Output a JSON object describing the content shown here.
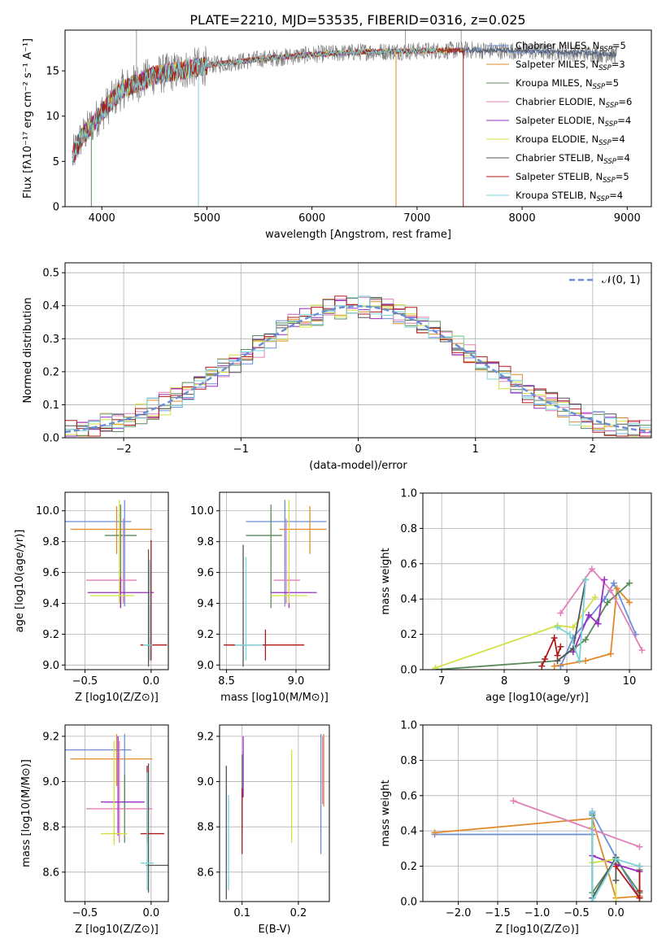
{
  "title": "PLATE=2210, MJD=53535, FIBERID=0316, z=0.025",
  "colors": [
    "#6b8fd6",
    "#e08a2c",
    "#5a8a5a",
    "#e080b8",
    "#9a2cc4",
    "#d4e040",
    "#555555",
    "#b01818",
    "#7ad4d8"
  ],
  "chart_data": [
    {
      "id": "spectrum",
      "type": "line",
      "xlabel": "wavelength [Angstrom, rest frame]",
      "ylabel": "Flux [fλ10⁻¹⁷ erg cm⁻² s⁻¹ A⁻¹]",
      "xlim": [
        3650,
        9230
      ],
      "ylim": [
        0,
        19.5
      ],
      "xticks": [
        4000,
        5000,
        6000,
        7000,
        8000,
        9000
      ],
      "yticks": [
        0,
        5,
        10,
        15
      ],
      "grid": false,
      "legend_placement": "top-right",
      "legend": [
        "Chabrier MILES, N_SSP=5",
        "Salpeter MILES, N_SSP=3",
        "Kroupa MILES, N_SSP=5",
        "Chabrier ELODIE, N_SSP=6",
        "Salpeter ELODIE, N_SSP=4",
        "Kroupa ELODIE, N_SSP=4",
        "Chabrier STELIB, N_SSP=4",
        "Salpeter STELIB, N_SSP=5",
        "Kroupa STELIB, N_SSP=4"
      ],
      "legend_display": [
        [
          "Chabrier MILES, N",
          "SSP",
          "=5"
        ],
        [
          "Salpeter MILES, N",
          "SSP",
          "=3"
        ],
        [
          "Kroupa MILES, N",
          "SSP",
          "=5"
        ],
        [
          "Chabrier ELODIE, N",
          "SSP",
          "=6"
        ],
        [
          "Salpeter ELODIE, N",
          "SSP",
          "=4"
        ],
        [
          "Kroupa ELODIE, N",
          "SSP",
          "=4"
        ],
        [
          "Chabrier STELIB, N",
          "SSP",
          "=4"
        ],
        [
          "Salpeter STELIB, N",
          "SSP",
          "=5"
        ],
        [
          "Kroupa STELIB, N",
          "SSP",
          "=4"
        ]
      ],
      "continuum": {
        "wavelength": [
          3720,
          3800,
          3900,
          4000,
          4200,
          4500,
          5000,
          5500,
          6000,
          6500,
          7000,
          7500,
          8000,
          8500,
          8900
        ],
        "flux": [
          5.5,
          7.5,
          9.0,
          10.5,
          13.0,
          14.5,
          15.6,
          16.3,
          16.8,
          17.1,
          17.2,
          17.3,
          17.2,
          17.0,
          16.8
        ]
      },
      "model_ends": [
        8900,
        7440,
        6800,
        7200,
        7050,
        7300,
        8900,
        7440,
        7200
      ],
      "model_drops": [
        [
          4920,
          0
        ],
        [
          6800,
          0
        ],
        [
          7440,
          0
        ],
        [
          3900,
          0
        ]
      ]
    },
    {
      "id": "residuals",
      "type": "histogram",
      "xlabel": "(data-model)/error",
      "ylabel": "Normed distribution",
      "xlim": [
        -2.5,
        2.5
      ],
      "ylim": [
        0,
        0.53
      ],
      "xticks": [
        -2,
        -1,
        0,
        1,
        2
      ],
      "yticks": [
        0.0,
        0.1,
        0.2,
        0.3,
        0.4,
        0.5
      ],
      "grid": true,
      "bin_width": 0.1,
      "reference": {
        "name": "𝒩(0, 1)",
        "mean": 0,
        "sigma": 1
      },
      "legend_placement": "top-right"
    },
    {
      "id": "age_vs_Z",
      "type": "errorbar",
      "xlabel": "Z [log10(Z/Z⊙)]",
      "ylabel": "age  [log10(age/yr)]",
      "xlim": [
        -0.65,
        0.13
      ],
      "ylim": [
        8.97,
        10.12
      ],
      "xticks": [
        -0.5,
        0.0
      ],
      "yticks": [
        9.0,
        9.2,
        9.4,
        9.6,
        9.8,
        10.0
      ],
      "grid": true,
      "points": [
        {
          "x": -0.2,
          "xerr": [
            0.45,
            0.05
          ],
          "y": 9.93,
          "yerr": [
            0.55,
            0.14
          ]
        },
        {
          "x": -0.26,
          "xerr": [
            0.35,
            0.27
          ],
          "y": 9.88,
          "yerr": [
            0.16,
            0.15
          ]
        },
        {
          "x": -0.23,
          "xerr": [
            0.12,
            0.12
          ],
          "y": 9.84,
          "yerr": [
            0.47,
            0.2
          ]
        },
        {
          "x": -0.21,
          "xerr": [
            0.28,
            0.1
          ],
          "y": 9.55,
          "yerr": [
            0.15,
            0.4
          ]
        },
        {
          "x": -0.23,
          "xerr": [
            0.25,
            0.25
          ],
          "y": 9.47,
          "yerr": [
            0.1,
            0.1
          ]
        },
        {
          "x": -0.24,
          "xerr": [
            0.22,
            0.11
          ],
          "y": 9.45,
          "yerr": [
            0.05,
            0.62
          ]
        },
        {
          "x": -0.02,
          "xerr": [
            0.02,
            0.02
          ],
          "y": 9.13,
          "yerr": [
            0.14,
            0.62
          ]
        },
        {
          "x": 0.0,
          "xerr": [
            0.08,
            0.12
          ],
          "y": 9.13,
          "yerr": [
            0.1,
            0.68
          ]
        },
        {
          "x": -0.01,
          "xerr": [
            0.05,
            0.02
          ],
          "y": 9.13,
          "yerr": [
            0.1,
            0.55
          ]
        }
      ]
    },
    {
      "id": "age_vs_mass",
      "type": "errorbar",
      "xlabel": "mass [log10(M/M⊙)]",
      "ylabel": "",
      "xlim": [
        8.45,
        9.24
      ],
      "ylim": [
        8.97,
        10.12
      ],
      "xticks": [
        8.5,
        9.0
      ],
      "yticks": [
        9.0,
        9.2,
        9.4,
        9.6,
        9.8,
        10.0
      ],
      "grid": true,
      "points": [
        {
          "x": 8.92,
          "xerr": [
            0.28,
            0.3
          ],
          "y": 9.93,
          "yerr": [
            0.55,
            0.14
          ]
        },
        {
          "x": 9.1,
          "xerr": [
            0.22,
            0.12
          ],
          "y": 9.88,
          "yerr": [
            0.16,
            0.15
          ]
        },
        {
          "x": 8.82,
          "xerr": [
            0.18,
            0.08
          ],
          "y": 9.84,
          "yerr": [
            0.47,
            0.2
          ]
        },
        {
          "x": 8.93,
          "xerr": [
            0.09,
            0.1
          ],
          "y": 9.55,
          "yerr": [
            0.15,
            0.4
          ]
        },
        {
          "x": 8.95,
          "xerr": [
            0.13,
            0.2
          ],
          "y": 9.47,
          "yerr": [
            0.1,
            0.1
          ]
        },
        {
          "x": 8.95,
          "xerr": [
            0.13,
            0.13
          ],
          "y": 9.45,
          "yerr": [
            0.05,
            0.62
          ]
        },
        {
          "x": 8.62,
          "xerr": [
            0.1,
            0.05
          ],
          "y": 9.13,
          "yerr": [
            0.14,
            0.65
          ]
        },
        {
          "x": 8.78,
          "xerr": [
            0.3,
            0.28
          ],
          "y": 9.13,
          "yerr": [
            0.1,
            0.1
          ]
        },
        {
          "x": 8.64,
          "xerr": [
            0.08,
            0.12
          ],
          "y": 9.13,
          "yerr": [
            0.1,
            0.57
          ]
        }
      ]
    },
    {
      "id": "weight_vs_age",
      "type": "line",
      "xlabel": "age  [log10(age/yr)]",
      "ylabel": "mass weight",
      "xlim": [
        6.7,
        10.35
      ],
      "ylim": [
        0,
        1.0
      ],
      "xticks": [
        7,
        8,
        9,
        10
      ],
      "yticks": [
        0.0,
        0.2,
        0.4,
        0.6,
        0.8,
        1.0
      ],
      "grid": true,
      "series": [
        {
          "x": [
            8.9,
            9.1,
            9.6,
            9.75,
            10.1
          ],
          "y": [
            0.02,
            0.18,
            0.4,
            0.49,
            0.2
          ]
        },
        {
          "x": [
            8.8,
            9.3,
            9.7,
            9.8,
            10.0
          ],
          "y": [
            0.02,
            0.05,
            0.09,
            0.46,
            0.38
          ]
        },
        {
          "x": [
            6.9,
            8.85,
            9.3,
            9.65,
            10.0
          ],
          "y": [
            0.0,
            0.05,
            0.17,
            0.38,
            0.49
          ]
        },
        {
          "x": [
            8.9,
            9.4,
            9.7,
            10.2
          ],
          "y": [
            0.32,
            0.57,
            0.45,
            0.11
          ]
        },
        {
          "x": [
            9.1,
            9.35,
            9.5,
            9.6
          ],
          "y": [
            0.1,
            0.31,
            0.26,
            0.51
          ]
        },
        {
          "x": [
            6.9,
            8.85,
            9.1,
            9.45
          ],
          "y": [
            0.01,
            0.25,
            0.24,
            0.41
          ]
        },
        {
          "x": [
            8.85,
            9.1,
            9.3
          ],
          "y": [
            0.05,
            0.12,
            0.51
          ]
        },
        {
          "x": [
            8.6,
            8.65,
            8.8,
            8.85,
            8.9
          ],
          "y": [
            0.02,
            0.06,
            0.18,
            0.08,
            0.13
          ]
        },
        {
          "x": [
            8.85,
            9.05,
            9.2,
            9.3
          ],
          "y": [
            0.24,
            0.2,
            0.05,
            0.51
          ]
        }
      ]
    },
    {
      "id": "mass_vs_Z",
      "type": "errorbar",
      "xlabel": "Z [log10(Z/Z⊙)]",
      "ylabel": "mass [log10(M/M⊙)]",
      "xlim": [
        -0.65,
        0.13
      ],
      "ylim": [
        8.47,
        9.25
      ],
      "xticks": [
        -0.5,
        0.0
      ],
      "yticks": [
        8.6,
        8.8,
        9.0,
        9.2
      ],
      "grid": true,
      "points": [
        {
          "x": -0.2,
          "xerr": [
            0.45,
            0.05
          ],
          "y": 9.14,
          "yerr": [
            0.26,
            0.07
          ]
        },
        {
          "x": -0.26,
          "xerr": [
            0.35,
            0.27
          ],
          "y": 9.1,
          "yerr": [
            0.12,
            0.11
          ]
        },
        {
          "x": -0.2,
          "xerr": [
            0.15,
            0.15
          ],
          "y": 8.91,
          "yerr": [
            0.18,
            0.12
          ]
        },
        {
          "x": -0.24,
          "xerr": [
            0.25,
            0.25
          ],
          "y": 8.88,
          "yerr": [
            0.15,
            0.3
          ]
        },
        {
          "x": -0.25,
          "xerr": [
            0.13,
            0.2
          ],
          "y": 8.91,
          "yerr": [
            0.15,
            0.29
          ]
        },
        {
          "x": -0.28,
          "xerr": [
            0.1,
            0.1
          ],
          "y": 8.77,
          "yerr": [
            0.05,
            0.41
          ]
        },
        {
          "x": -0.02,
          "xerr": [
            0.02,
            0.15
          ],
          "y": 8.63,
          "yerr": [
            0.12,
            0.45
          ]
        },
        {
          "x": -0.03,
          "xerr": [
            0.05,
            0.13
          ],
          "y": 8.77,
          "yerr": [
            0.04,
            0.3
          ]
        },
        {
          "x": -0.03,
          "xerr": [
            0.05,
            0.05
          ],
          "y": 8.64,
          "yerr": [
            0.12,
            0.4
          ]
        }
      ]
    },
    {
      "id": "mass_vs_EBV",
      "type": "errorbar",
      "xlabel": "E(B-V)",
      "ylabel": "",
      "xlim": [
        0.06,
        0.255
      ],
      "ylim": [
        8.47,
        9.25
      ],
      "xticks": [
        0.1,
        0.2
      ],
      "yticks": [
        8.6,
        8.8,
        9.0,
        9.2
      ],
      "grid": true,
      "points": [
        {
          "x": 0.24,
          "y": 8.95,
          "yerr": [
            0.27,
            0.26
          ]
        },
        {
          "x": 0.245,
          "y": 9.05,
          "yerr": [
            0.16,
            0.16
          ]
        },
        {
          "x": 0.1,
          "y": 8.95,
          "yerr": [
            0.18,
            0.17
          ]
        },
        {
          "x": 0.243,
          "y": 9.05,
          "yerr": [
            0.15,
            0.15
          ]
        },
        {
          "x": 0.102,
          "y": 9.05,
          "yerr": [
            0.12,
            0.15
          ]
        },
        {
          "x": 0.188,
          "y": 8.93,
          "yerr": [
            0.2,
            0.21
          ]
        },
        {
          "x": 0.072,
          "y": 8.78,
          "yerr": [
            0.3,
            0.29
          ]
        },
        {
          "x": 0.1,
          "y": 8.82,
          "yerr": [
            0.14,
            0.15
          ]
        },
        {
          "x": 0.076,
          "y": 8.73,
          "yerr": [
            0.21,
            0.21
          ]
        }
      ]
    },
    {
      "id": "weight_vs_Z",
      "type": "line",
      "xlabel": "Z [log10(Z/Z⊙)]",
      "ylabel": "mass weight",
      "xlim": [
        -2.45,
        0.45
      ],
      "ylim": [
        0,
        1.0
      ],
      "xticks": [
        -2.0,
        -1.5,
        -1.0,
        -0.5,
        0.0
      ],
      "yticks": [
        0.0,
        0.2,
        0.4,
        0.6,
        0.8,
        1.0
      ],
      "grid": true,
      "series": [
        {
          "x": [
            -2.3,
            -0.3,
            -0.3,
            0.0,
            0.3
          ],
          "y": [
            0.38,
            0.38,
            0.5,
            0.25,
            0.02
          ]
        },
        {
          "x": [
            -2.3,
            -0.3,
            0.0,
            0.3
          ],
          "y": [
            0.39,
            0.47,
            0.02,
            0.03
          ]
        },
        {
          "x": [
            -0.3,
            -0.3,
            0.0,
            0.3,
            0.3
          ],
          "y": [
            0.49,
            0.05,
            0.24,
            0.05,
            0.18
          ]
        },
        {
          "x": [
            -1.3,
            0.3
          ],
          "y": [
            0.57,
            0.31
          ]
        },
        {
          "x": [
            -0.3,
            0.0,
            0.3
          ],
          "y": [
            0.26,
            0.21,
            0.17
          ]
        },
        {
          "x": [
            -0.3,
            -0.3,
            0.0,
            0.0
          ],
          "y": [
            0.42,
            0.22,
            0.24,
            0.0
          ]
        },
        {
          "x": [
            -0.3,
            -0.3,
            0.0,
            0.0
          ],
          "y": [
            0.51,
            0.02,
            0.25,
            0.12
          ]
        },
        {
          "x": [
            0.0,
            0.3,
            0.3,
            0.3
          ],
          "y": [
            0.2,
            0.02,
            0.06,
            0.2
          ]
        },
        {
          "x": [
            -0.3,
            -0.3,
            0.0,
            0.3
          ],
          "y": [
            0.51,
            0.0,
            0.24,
            0.2
          ]
        }
      ]
    }
  ]
}
